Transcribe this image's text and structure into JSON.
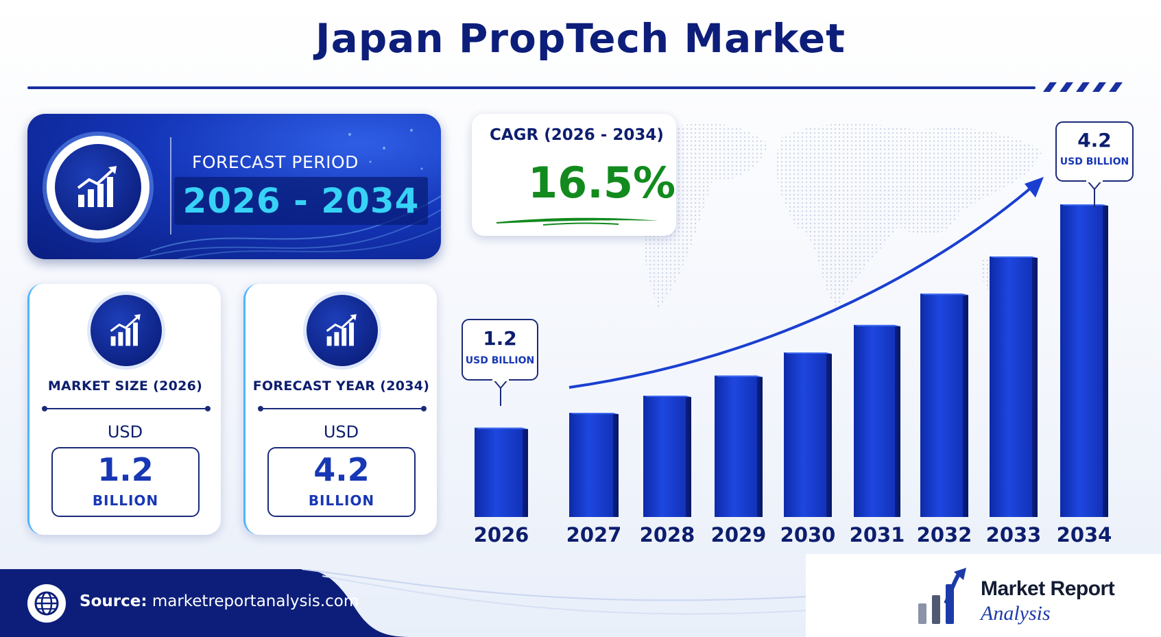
{
  "title": "Japan PropTech Market",
  "forecast": {
    "label": "FORECAST PERIOD",
    "value": "2026 - 2034"
  },
  "market_size": {
    "label": "MARKET SIZE (2026)",
    "currency": "USD",
    "value": "1.2",
    "unit": "BILLION"
  },
  "forecast_year": {
    "label": "FORECAST YEAR (2034)",
    "currency": "USD",
    "value": "4.2",
    "unit": "BILLION"
  },
  "cagr": {
    "label": "CAGR (2026 - 2034)",
    "value": "16.5%"
  },
  "callouts": {
    "first": {
      "value": "1.2",
      "unit": "USD BILLION"
    },
    "last": {
      "value": "4.2",
      "unit": "USD BILLION"
    }
  },
  "source": {
    "label": "Source:",
    "url": "marketreportanalysis.com"
  },
  "logo": {
    "line1": "Market Report",
    "line2": "Analysis"
  },
  "colors": {
    "navy": "#0d1e7a",
    "bar": "#1a3fd0",
    "cyan": "#37d2f5",
    "green": "#128a1e"
  },
  "chart_data": {
    "type": "bar",
    "categories": [
      "2026",
      "2027",
      "2028",
      "2029",
      "2030",
      "2031",
      "2032",
      "2033",
      "2034"
    ],
    "values": [
      1.2,
      1.4,
      1.63,
      1.9,
      2.21,
      2.58,
      3.0,
      3.5,
      4.2
    ],
    "unit": "USD Billion",
    "title": "",
    "xlabel": "",
    "ylabel": "",
    "ylim": [
      0,
      4.2
    ],
    "trend_arrow": true
  }
}
